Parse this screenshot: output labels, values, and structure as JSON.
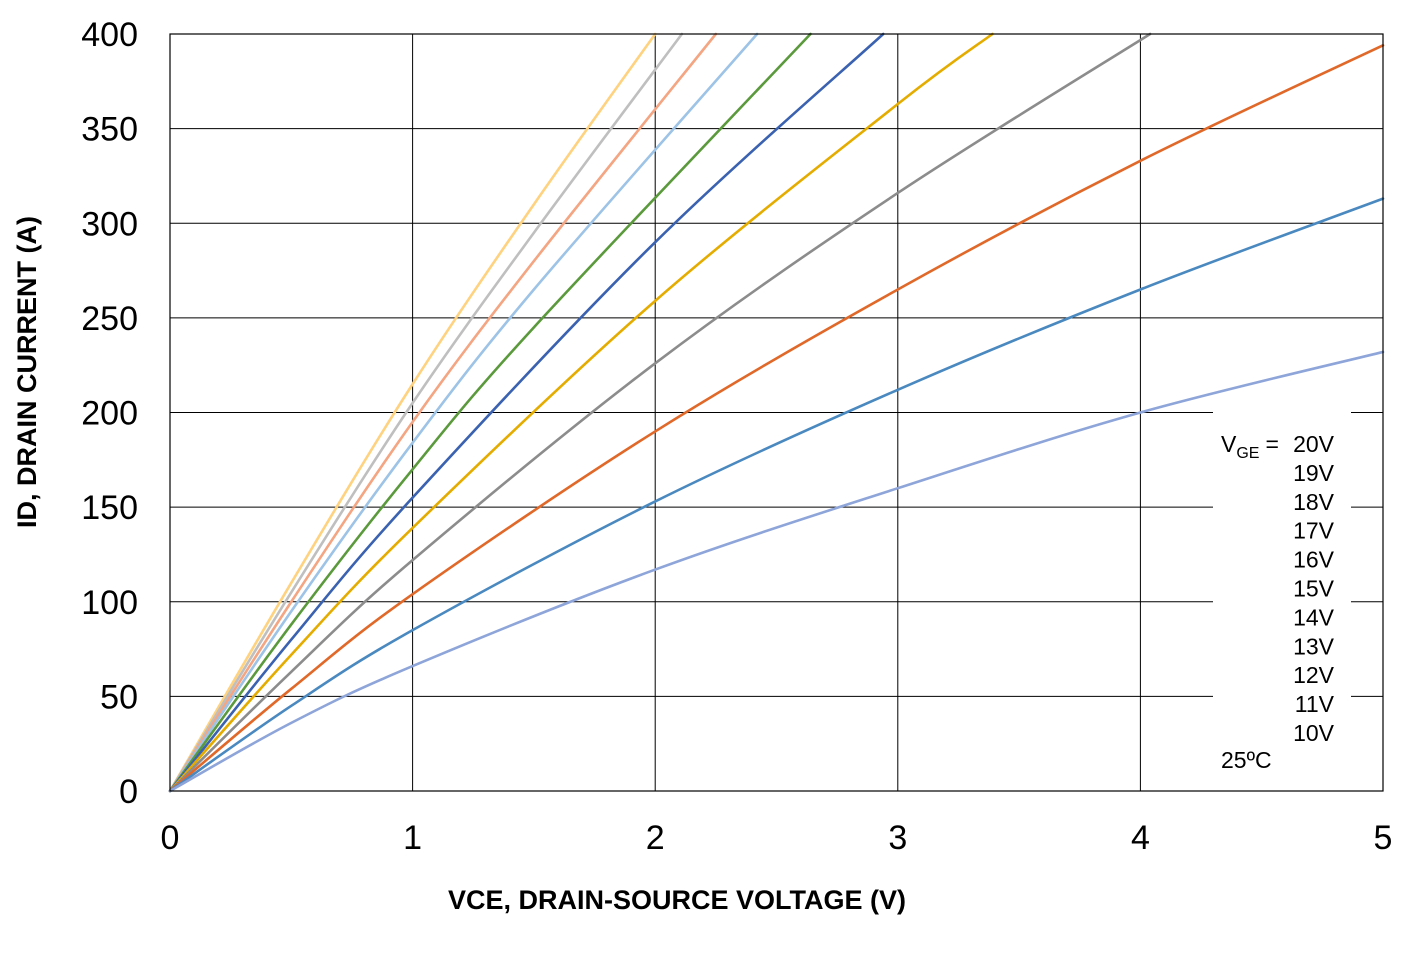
{
  "chart_data": {
    "type": "line",
    "title": "",
    "xlabel": "VCE, DRAIN-SOURCE VOLTAGE (V)",
    "ylabel": "ID, DRAIN CURRENT (A)",
    "xlim": [
      0,
      5
    ],
    "ylim": [
      0,
      400
    ],
    "xticks": [
      "0",
      "1",
      "2",
      "3",
      "4",
      "5"
    ],
    "yticks": [
      "0",
      "50",
      "100",
      "150",
      "200",
      "250",
      "300",
      "350",
      "400"
    ],
    "grid": true,
    "legend": {
      "position": "right",
      "prefix": "V",
      "prefix_sub": "GE",
      "prefix_eq": "=",
      "temperature": "25ºC"
    },
    "series": [
      {
        "name": "20V",
        "color": "#FFD27F",
        "x": [
          0,
          0.5,
          1,
          1.5,
          2.0
        ],
        "y": [
          0,
          110,
          215,
          310,
          400
        ]
      },
      {
        "name": "19V",
        "color": "#BFBFBF",
        "x": [
          0,
          0.5,
          1,
          1.5,
          2.11
        ],
        "y": [
          0,
          105,
          205,
          295,
          400
        ]
      },
      {
        "name": "18V",
        "color": "#F4A582",
        "x": [
          0,
          0.5,
          1,
          1.5,
          2.25
        ],
        "y": [
          0,
          100,
          195,
          280,
          400
        ]
      },
      {
        "name": "17V",
        "color": "#9DC3E6",
        "x": [
          0,
          0.5,
          1,
          1.5,
          2.42
        ],
        "y": [
          0,
          95,
          184,
          265,
          400
        ]
      },
      {
        "name": "16V",
        "color": "#5B9A3C",
        "x": [
          0,
          0.5,
          1,
          1.5,
          2.64
        ],
        "y": [
          0,
          88,
          170,
          245,
          400
        ]
      },
      {
        "name": "15V",
        "color": "#3A62B0",
        "x": [
          0,
          0.5,
          1,
          2,
          2.94
        ],
        "y": [
          0,
          80,
          155,
          290,
          400
        ]
      },
      {
        "name": "14V",
        "color": "#E5AC00",
        "x": [
          0,
          0.5,
          1,
          2,
          3,
          3.39
        ],
        "y": [
          0,
          72,
          139,
          259,
          363,
          400
        ]
      },
      {
        "name": "13V",
        "color": "#8C8C8C",
        "x": [
          0,
          0.5,
          1,
          2,
          3,
          4.04
        ],
        "y": [
          0,
          63,
          122,
          226,
          316,
          400
        ]
      },
      {
        "name": "12V",
        "color": "#E0692A",
        "x": [
          0,
          0.5,
          1,
          2,
          3,
          4,
          5
        ],
        "y": [
          0,
          54,
          104,
          190,
          265,
          333,
          394
        ]
      },
      {
        "name": "11V",
        "color": "#4A89C0",
        "x": [
          0,
          0.5,
          1,
          2,
          3,
          4,
          5
        ],
        "y": [
          0,
          45,
          85,
          153,
          212,
          265,
          313
        ]
      },
      {
        "name": "10V",
        "color": "#8EA5DA",
        "x": [
          0,
          0.5,
          1,
          2,
          3,
          4,
          5
        ],
        "y": [
          0,
          36,
          66,
          117,
          160,
          200,
          232
        ]
      }
    ]
  }
}
